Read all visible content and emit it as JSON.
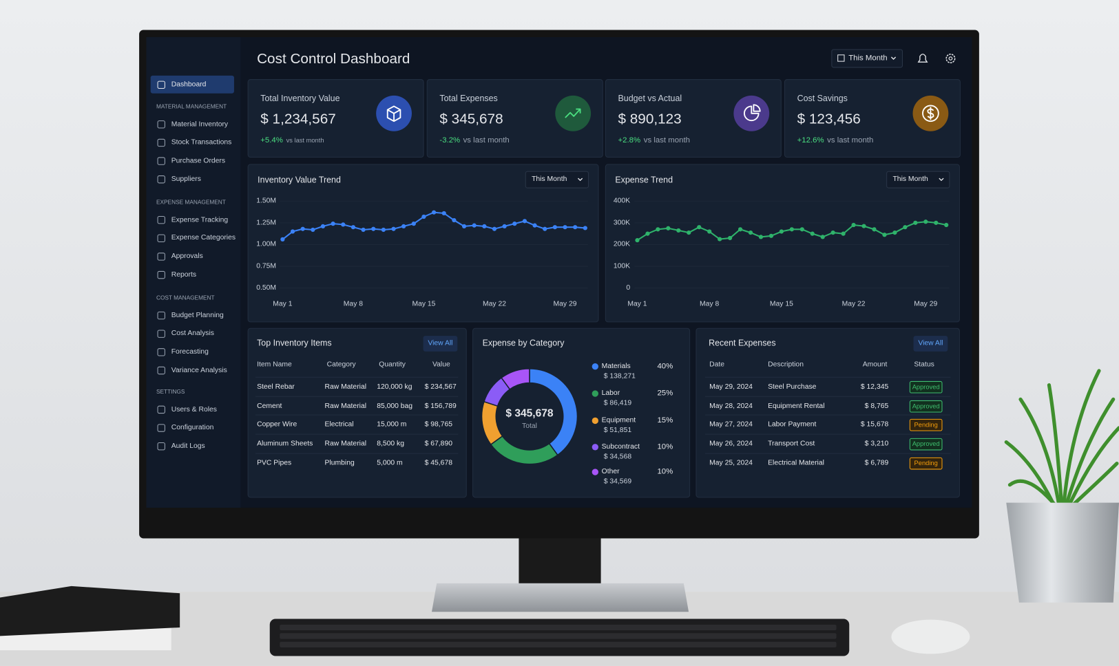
{
  "header": {
    "title": "Cost Control Dashboard",
    "period": "This Month"
  },
  "sidebar": {
    "active": "Dashboard",
    "sections": [
      {
        "title": "MATERIAL MANAGEMENT",
        "items": [
          "Material Inventory",
          "Stock Transactions",
          "Purchase Orders",
          "Suppliers"
        ]
      },
      {
        "title": "EXPENSE MANAGEMENT",
        "items": [
          "Expense Tracking",
          "Expense Categories",
          "Approvals",
          "Reports"
        ]
      },
      {
        "title": "COST MANAGEMENT",
        "items": [
          "Budget Planning",
          "Cost Analysis",
          "Forecasting",
          "Variance Analysis"
        ]
      },
      {
        "title": "SETTINGS",
        "items": [
          "Users & Roles",
          "Configuration",
          "Audit Logs"
        ]
      }
    ]
  },
  "kpis": [
    {
      "label": "Total Inventory Value",
      "value": "$ 1,234,567",
      "change": "+5.4%",
      "note": "vs last month",
      "color": "#2c4fb0"
    },
    {
      "label": "Total Expenses",
      "value": "$ 345,678",
      "change": "-3.2%",
      "note": "vs last month",
      "color": "#1f5a3c"
    },
    {
      "label": "Budget vs Actual",
      "value": "$ 890,123",
      "change": "+2.8%",
      "note": "vs last month",
      "color": "#4b3a8c"
    },
    {
      "label": "Cost Savings",
      "value": "$ 123,456",
      "change": "+12.6%",
      "note": "vs last month",
      "color": "#8a5a14"
    }
  ],
  "chart_data": [
    {
      "type": "line",
      "title": "Inventory Value Trend",
      "filter": "This Month",
      "categories": [
        "May 1",
        null,
        null,
        null,
        null,
        null,
        null,
        "May 8",
        null,
        null,
        null,
        null,
        null,
        null,
        "May 15",
        null,
        null,
        null,
        null,
        null,
        null,
        "May 22",
        null,
        null,
        null,
        null,
        null,
        null,
        "May 29",
        null,
        null
      ],
      "series": [
        {
          "color": "#3b82f6",
          "values": [
            1060000,
            1150000,
            1180000,
            1170000,
            1210000,
            1240000,
            1230000,
            1200000,
            1170000,
            1180000,
            1170000,
            1180000,
            1210000,
            1240000,
            1320000,
            1370000,
            1360000,
            1280000,
            1210000,
            1220000,
            1210000,
            1180000,
            1210000,
            1240000,
            1270000,
            1220000,
            1180000,
            1200000,
            1200000,
            1200000,
            1190000
          ]
        }
      ],
      "ylim": [
        500000,
        1500000
      ],
      "yticks": [
        {
          "value": 1500000,
          "label": "1.50M"
        },
        {
          "value": 1250000,
          "label": "1.25M"
        },
        {
          "value": 1000000,
          "label": "1.00M"
        },
        {
          "value": 750000,
          "label": "0.75M"
        },
        {
          "value": 500000,
          "label": "0.50M"
        }
      ],
      "grid": true
    },
    {
      "type": "line",
      "title": "Expense Trend",
      "filter": "This Month",
      "categories": [
        "May 1",
        null,
        null,
        null,
        null,
        null,
        null,
        "May 8",
        null,
        null,
        null,
        null,
        null,
        null,
        "May 15",
        null,
        null,
        null,
        null,
        null,
        null,
        "May 22",
        null,
        null,
        null,
        null,
        null,
        null,
        "May 29",
        null,
        null
      ],
      "series": [
        {
          "color": "#2fb36b",
          "values": [
            220000,
            250000,
            270000,
            275000,
            265000,
            255000,
            280000,
            260000,
            225000,
            230000,
            270000,
            255000,
            235000,
            240000,
            260000,
            270000,
            270000,
            250000,
            235000,
            255000,
            250000,
            290000,
            285000,
            270000,
            245000,
            255000,
            280000,
            300000,
            305000,
            300000,
            290000
          ]
        }
      ],
      "ylim": [
        0,
        400000
      ],
      "yticks": [
        {
          "value": 400000,
          "label": "400K"
        },
        {
          "value": 300000,
          "label": "300K"
        },
        {
          "value": 200000,
          "label": "200K"
        },
        {
          "value": 100000,
          "label": "100K"
        },
        0
      ],
      "grid": true
    },
    {
      "type": "pie",
      "title": "Expense by Category",
      "center_value": "$ 345,678",
      "center_label": "Total",
      "categories": [
        "Materials",
        "Labor",
        "Equipment",
        "Subcontract",
        "Other"
      ],
      "amounts": [
        "$ 138,271",
        "$ 86,419",
        "$ 51,851",
        "$ 34,568",
        "$ 34,569"
      ],
      "values": [
        40,
        25,
        15,
        10,
        10
      ],
      "value_labels": [
        "40%",
        "25%",
        "15%",
        "10%",
        "10%"
      ],
      "colors": [
        "#3b82f6",
        "#2f9e5a",
        "#f0a030",
        "#8b5cf6",
        "#a855f7"
      ]
    }
  ],
  "inventory_table": {
    "title": "Top Inventory Items",
    "action": "View All",
    "columns": [
      "Item Name",
      "Category",
      "Quantity",
      "Value"
    ],
    "rows": [
      [
        "Steel Rebar",
        "Raw Material",
        "120,000 kg",
        "$ 234,567"
      ],
      [
        "Cement",
        "Raw Material",
        "85,000 bag",
        "$ 156,789"
      ],
      [
        "Copper Wire",
        "Electrical",
        "15,000 m",
        "$ 98,765"
      ],
      [
        "Aluminum Sheets",
        "Raw Material",
        "8,500 kg",
        "$ 67,890"
      ],
      [
        "PVC Pipes",
        "Plumbing",
        "5,000 m",
        "$ 45,678"
      ]
    ]
  },
  "expense_table": {
    "title": "Recent Expenses",
    "action": "View All",
    "columns": [
      "Date",
      "Description",
      "Amount",
      "Status"
    ],
    "rows": [
      [
        "May 29, 2024",
        "Steel Purchase",
        "$ 12,345",
        "Approved"
      ],
      [
        "May 28, 2024",
        "Equipment Rental",
        "$ 8,765",
        "Approved"
      ],
      [
        "May 27, 2024",
        "Labor Payment",
        "$ 15,678",
        "Pending"
      ],
      [
        "May 26, 2024",
        "Transport Cost",
        "$ 3,210",
        "Approved"
      ],
      [
        "May 25, 2024",
        "Electrical Material",
        "$ 6,789",
        "Pending"
      ]
    ]
  }
}
